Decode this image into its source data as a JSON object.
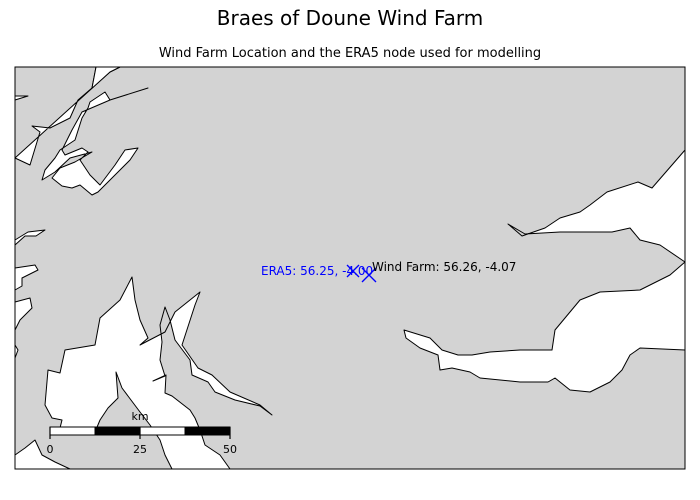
{
  "title": "Braes of Doune Wind Farm",
  "subtitle": "Wind Farm Location and the ERA5 node used for modelling",
  "markers": [
    {
      "name": "Wind Farm",
      "label": "Wind Farm: 56.26, -4.07",
      "lat": 56.26,
      "lon": -4.07,
      "color": "#0000ff"
    },
    {
      "name": "ERA5",
      "label": "ERA5: 56.25, -4.00",
      "lat": 56.25,
      "lon": -4.0,
      "color": "#0000ff"
    }
  ],
  "scalebar": {
    "unit": "km",
    "ticks": [
      "0",
      "25",
      "50"
    ]
  },
  "colors": {
    "land": "#d3d3d3",
    "water": "#ffffff",
    "marker": "#0000ff"
  }
}
